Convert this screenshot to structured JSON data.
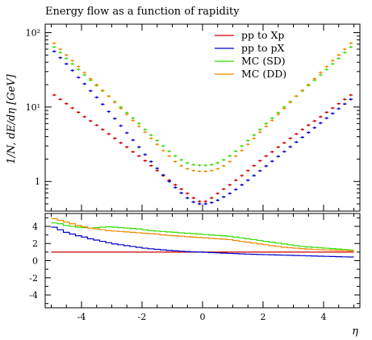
{
  "chart_data": [
    {
      "type": "scatter",
      "title": "Energy flow as a function of rapidity",
      "xlabel": "η",
      "ylabel": "1/N, dE/dη [GeV]",
      "yscale": "log",
      "xlim": [
        -5.2,
        5.2
      ],
      "ylim": [
        0.4,
        130
      ],
      "x_ticks": [
        -4,
        -2,
        0,
        2,
        4
      ],
      "y_ticks": [
        {
          "value": 1,
          "label": "1"
        },
        {
          "value": 10,
          "label": "10¹"
        },
        {
          "value": 100,
          "label": "10²"
        }
      ],
      "legend_position": "top-right",
      "series": [
        {
          "name": "pp to Xp",
          "color": "#cc0000",
          "x": [
            -4.9,
            -4.7,
            -4.5,
            -4.3,
            -4.1,
            -3.9,
            -3.7,
            -3.5,
            -3.3,
            -3.1,
            -2.9,
            -2.7,
            -2.5,
            -2.3,
            -2.1,
            -1.9,
            -1.7,
            -1.5,
            -1.3,
            -1.1,
            -0.9,
            -0.7,
            -0.5,
            -0.3,
            -0.1,
            0.1,
            0.3,
            0.5,
            0.7,
            0.9,
            1.1,
            1.3,
            1.5,
            1.7,
            1.9,
            2.1,
            2.3,
            2.5,
            2.7,
            2.9,
            3.1,
            3.3,
            3.5,
            3.7,
            3.9,
            4.1,
            4.3,
            4.5,
            4.7,
            4.9
          ],
          "y": [
            14.5,
            12.7,
            11.1,
            9.7,
            8.5,
            7.4,
            6.5,
            5.7,
            5.0,
            4.35,
            3.8,
            3.3,
            2.9,
            2.5,
            2.2,
            1.9,
            1.63,
            1.4,
            1.2,
            1.04,
            0.9,
            0.79,
            0.69,
            0.6,
            0.54,
            0.54,
            0.6,
            0.69,
            0.79,
            0.9,
            1.04,
            1.2,
            1.4,
            1.63,
            1.9,
            2.2,
            2.5,
            2.9,
            3.3,
            3.8,
            4.35,
            5.0,
            5.7,
            6.5,
            7.4,
            8.5,
            9.7,
            11.1,
            12.7,
            14.5
          ]
        },
        {
          "name": "pp to pX",
          "color": "#0000cc",
          "x": [
            -4.9,
            -4.7,
            -4.5,
            -4.3,
            -4.1,
            -3.9,
            -3.7,
            -3.5,
            -3.3,
            -3.1,
            -2.9,
            -2.7,
            -2.5,
            -2.3,
            -2.1,
            -1.9,
            -1.7,
            -1.5,
            -1.3,
            -1.1,
            -0.9,
            -0.7,
            -0.5,
            -0.3,
            -0.1,
            0.1,
            0.3,
            0.5,
            0.7,
            0.9,
            1.1,
            1.3,
            1.5,
            1.7,
            1.9,
            2.1,
            2.3,
            2.5,
            2.7,
            2.9,
            3.1,
            3.3,
            3.5,
            3.7,
            3.9,
            4.1,
            4.3,
            4.5,
            4.7,
            4.9
          ],
          "y": [
            56,
            46,
            38,
            31,
            25,
            20.5,
            16.5,
            13.5,
            10.9,
            8.7,
            7.0,
            5.6,
            4.5,
            3.6,
            2.9,
            2.3,
            1.85,
            1.5,
            1.22,
            1.0,
            0.83,
            0.7,
            0.6,
            0.53,
            0.5,
            0.5,
            0.52,
            0.56,
            0.62,
            0.69,
            0.78,
            0.9,
            1.04,
            1.2,
            1.39,
            1.61,
            1.87,
            2.17,
            2.52,
            2.92,
            3.38,
            3.92,
            4.55,
            5.27,
            6.1,
            7.1,
            8.2,
            9.5,
            11.0,
            12.7
          ]
        },
        {
          "name": "MC (SD)",
          "color": "#33dd00",
          "x": [
            -4.9,
            -4.7,
            -4.5,
            -4.3,
            -4.1,
            -3.9,
            -3.7,
            -3.5,
            -3.3,
            -3.1,
            -2.9,
            -2.7,
            -2.5,
            -2.3,
            -2.1,
            -1.9,
            -1.7,
            -1.5,
            -1.3,
            -1.1,
            -0.9,
            -0.7,
            -0.5,
            -0.3,
            -0.1,
            0.1,
            0.3,
            0.5,
            0.7,
            0.9,
            1.1,
            1.3,
            1.5,
            1.7,
            1.9,
            2.1,
            2.3,
            2.5,
            2.7,
            2.9,
            3.1,
            3.3,
            3.5,
            3.7,
            3.9,
            4.1,
            4.3,
            4.5,
            4.7,
            4.9
          ],
          "y": [
            64,
            54,
            45,
            38,
            32,
            27,
            23,
            19.5,
            16.5,
            14.0,
            11.8,
            10.0,
            8.4,
            7.1,
            6.0,
            5.0,
            4.2,
            3.55,
            3.0,
            2.55,
            2.2,
            1.95,
            1.78,
            1.68,
            1.65,
            1.65,
            1.68,
            1.78,
            1.95,
            2.2,
            2.55,
            3.0,
            3.55,
            4.2,
            5.0,
            6.0,
            7.1,
            8.4,
            10.0,
            11.8,
            14.0,
            16.5,
            19.5,
            23,
            27,
            32,
            38,
            45,
            54,
            64
          ]
        },
        {
          "name": "MC (DD)",
          "color": "#ee8800",
          "x": [
            -4.9,
            -4.7,
            -4.5,
            -4.3,
            -4.1,
            -3.9,
            -3.7,
            -3.5,
            -3.3,
            -3.1,
            -2.9,
            -2.7,
            -2.5,
            -2.3,
            -2.1,
            -1.9,
            -1.7,
            -1.5,
            -1.3,
            -1.1,
            -0.9,
            -0.7,
            -0.5,
            -0.3,
            -0.1,
            0.1,
            0.3,
            0.5,
            0.7,
            0.9,
            1.1,
            1.3,
            1.5,
            1.7,
            1.9,
            2.1,
            2.3,
            2.5,
            2.7,
            2.9,
            3.1,
            3.3,
            3.5,
            3.7,
            3.9,
            4.1,
            4.3,
            4.5,
            4.7,
            4.9
          ],
          "y": [
            72,
            60,
            50,
            42,
            35,
            29,
            24,
            20,
            16.8,
            14.0,
            11.6,
            9.6,
            8.0,
            6.6,
            5.5,
            4.6,
            3.8,
            3.15,
            2.6,
            2.2,
            1.85,
            1.62,
            1.48,
            1.4,
            1.37,
            1.37,
            1.4,
            1.48,
            1.62,
            1.85,
            2.2,
            2.6,
            3.15,
            3.8,
            4.6,
            5.5,
            6.6,
            8.0,
            9.6,
            11.6,
            14.0,
            16.8,
            20,
            24,
            29,
            35,
            42,
            50,
            60,
            72
          ]
        }
      ]
    },
    {
      "type": "line",
      "xlabel": "",
      "ylabel": "",
      "xlim": [
        -5.2,
        5.2
      ],
      "ylim": [
        -5.5,
        5.5
      ],
      "x_ticks": [
        -4,
        -2,
        0,
        2,
        4
      ],
      "y_ticks": [
        -4,
        -2,
        0,
        2,
        4
      ],
      "series": [
        {
          "name": "pp to Xp",
          "color": "#cc0000",
          "x": [
            -4.9,
            -4.7,
            -4.5,
            -4.3,
            -4.1,
            -3.9,
            -3.7,
            -3.5,
            -3.3,
            -3.1,
            -2.9,
            -2.7,
            -2.5,
            -2.3,
            -2.1,
            -1.9,
            -1.7,
            -1.5,
            -1.3,
            -1.1,
            -0.9,
            -0.7,
            -0.5,
            -0.3,
            -0.1,
            0.1,
            0.3,
            0.5,
            0.7,
            0.9,
            1.1,
            1.3,
            1.5,
            1.7,
            1.9,
            2.1,
            2.3,
            2.5,
            2.7,
            2.9,
            3.1,
            3.3,
            3.5,
            3.7,
            3.9,
            4.1,
            4.3,
            4.5,
            4.7,
            4.9
          ],
          "y": [
            1,
            1,
            1,
            1,
            1,
            1,
            1,
            1,
            1,
            1,
            1,
            1,
            1,
            1,
            1,
            1,
            1,
            1,
            1,
            1,
            1,
            1,
            1,
            1,
            1,
            1,
            1,
            1,
            1,
            1,
            1,
            1,
            1,
            1,
            1,
            1,
            1,
            1,
            1,
            1,
            1,
            1,
            1,
            1,
            1,
            1,
            1,
            1,
            1,
            1
          ]
        },
        {
          "name": "pp to pX",
          "color": "#0000cc",
          "x": [
            -4.9,
            -4.7,
            -4.5,
            -4.3,
            -4.1,
            -3.9,
            -3.7,
            -3.5,
            -3.3,
            -3.1,
            -2.9,
            -2.7,
            -2.5,
            -2.3,
            -2.1,
            -1.9,
            -1.7,
            -1.5,
            -1.3,
            -1.1,
            -0.9,
            -0.7,
            -0.5,
            -0.3,
            -0.1,
            0.1,
            0.3,
            0.5,
            0.7,
            0.9,
            1.1,
            1.3,
            1.5,
            1.7,
            1.9,
            2.1,
            2.3,
            2.5,
            2.7,
            2.9,
            3.1,
            3.3,
            3.5,
            3.7,
            3.9,
            4.1,
            4.3,
            4.5,
            4.7,
            4.9
          ],
          "y": [
            3.9,
            3.6,
            3.3,
            3.1,
            2.9,
            2.75,
            2.55,
            2.4,
            2.25,
            2.1,
            1.95,
            1.85,
            1.75,
            1.65,
            1.55,
            1.45,
            1.38,
            1.32,
            1.26,
            1.2,
            1.15,
            1.1,
            1.06,
            1.03,
            1.0,
            0.97,
            0.94,
            0.91,
            0.88,
            0.85,
            0.82,
            0.79,
            0.76,
            0.74,
            0.72,
            0.7,
            0.68,
            0.66,
            0.64,
            0.62,
            0.6,
            0.58,
            0.56,
            0.54,
            0.52,
            0.5,
            0.48,
            0.46,
            0.44,
            0.42
          ]
        },
        {
          "name": "MC (SD)",
          "color": "#33dd00",
          "x": [
            -4.9,
            -4.7,
            -4.5,
            -4.3,
            -4.1,
            -3.9,
            -3.7,
            -3.5,
            -3.3,
            -3.1,
            -2.9,
            -2.7,
            -2.5,
            -2.3,
            -2.1,
            -1.9,
            -1.7,
            -1.5,
            -1.3,
            -1.1,
            -0.9,
            -0.7,
            -0.5,
            -0.3,
            -0.1,
            0.1,
            0.3,
            0.5,
            0.7,
            0.9,
            1.1,
            1.3,
            1.5,
            1.7,
            1.9,
            2.1,
            2.3,
            2.5,
            2.7,
            2.9,
            3.1,
            3.3,
            3.5,
            3.7,
            3.9,
            4.1,
            4.3,
            4.5,
            4.7,
            4.9
          ],
          "y": [
            4.4,
            4.3,
            4.1,
            4.0,
            3.9,
            3.85,
            3.8,
            3.85,
            3.9,
            3.95,
            3.9,
            3.85,
            3.8,
            3.75,
            3.7,
            3.6,
            3.5,
            3.45,
            3.4,
            3.35,
            3.3,
            3.25,
            3.2,
            3.15,
            3.1,
            3.05,
            3.0,
            2.95,
            2.9,
            2.85,
            2.75,
            2.65,
            2.55,
            2.45,
            2.35,
            2.25,
            2.15,
            2.05,
            1.95,
            1.85,
            1.75,
            1.65,
            1.6,
            1.55,
            1.5,
            1.45,
            1.4,
            1.35,
            1.3,
            1.25
          ]
        },
        {
          "name": "MC (DD)",
          "color": "#ee8800",
          "x": [
            -4.9,
            -4.7,
            -4.5,
            -4.3,
            -4.1,
            -3.9,
            -3.7,
            -3.5,
            -3.3,
            -3.1,
            -2.9,
            -2.7,
            -2.5,
            -2.3,
            -2.1,
            -1.9,
            -1.7,
            -1.5,
            -1.3,
            -1.1,
            -0.9,
            -0.7,
            -0.5,
            -0.3,
            -0.1,
            0.1,
            0.3,
            0.5,
            0.7,
            0.9,
            1.1,
            1.3,
            1.5,
            1.7,
            1.9,
            2.1,
            2.3,
            2.5,
            2.7,
            2.9,
            3.1,
            3.3,
            3.5,
            3.7,
            3.9,
            4.1,
            4.3,
            4.5,
            4.7,
            4.9
          ],
          "y": [
            4.9,
            4.7,
            4.5,
            4.3,
            4.1,
            3.95,
            3.8,
            3.7,
            3.6,
            3.5,
            3.45,
            3.4,
            3.35,
            3.3,
            3.25,
            3.2,
            3.15,
            3.1,
            3.0,
            2.95,
            2.9,
            2.85,
            2.8,
            2.75,
            2.7,
            2.65,
            2.6,
            2.55,
            2.5,
            2.45,
            2.35,
            2.25,
            2.15,
            2.05,
            1.95,
            1.85,
            1.75,
            1.65,
            1.55,
            1.5,
            1.45,
            1.4,
            1.35,
            1.3,
            1.28,
            1.25,
            1.22,
            1.2,
            1.18,
            1.15
          ]
        }
      ]
    }
  ]
}
